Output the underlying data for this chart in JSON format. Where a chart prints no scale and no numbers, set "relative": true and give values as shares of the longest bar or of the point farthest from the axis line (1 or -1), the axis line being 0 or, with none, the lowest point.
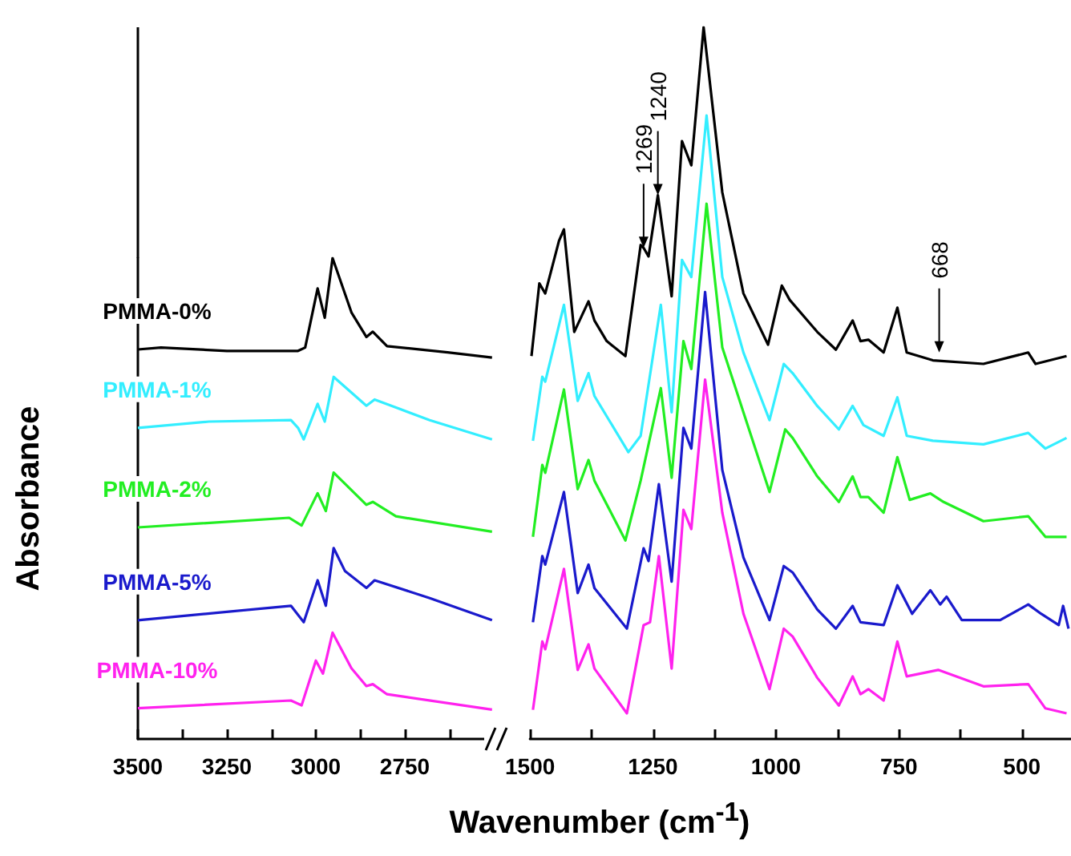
{
  "chart_data": [
    {
      "type": "line",
      "relative": true,
      "ylabel": "Absorbance",
      "xlim": [
        3500,
        2500
      ],
      "xticks": [
        3500,
        {
          "value": 3375,
          "label": null
        },
        3250,
        {
          "value": 3125,
          "label": null
        },
        3000,
        {
          "value": 2875,
          "label": null
        },
        2750,
        {
          "value": 2625,
          "label": null
        },
        {
          "value": 2500,
          "label": null
        }
      ],
      "series": [
        {
          "name": "PMMA-0%",
          "color": "#000000",
          "x": [
            3500,
            3435,
            3250,
            3050,
            3030,
            2995,
            2975,
            2953,
            2900,
            2858,
            2840,
            2800,
            2630,
            2505
          ],
          "values": [
            0.81,
            0.814,
            0.807,
            0.807,
            0.814,
            0.937,
            0.876,
            1.0,
            0.887,
            0.836,
            0.847,
            0.817,
            0.804,
            0.793
          ]
        },
        {
          "name": "PMMA-1%",
          "color": "#33eeff",
          "x": [
            3500,
            3300,
            3070,
            3050,
            3034,
            2995,
            2975,
            2950,
            2858,
            2835,
            2680,
            2505
          ],
          "values": [
            0.647,
            0.66,
            0.663,
            0.647,
            0.623,
            0.697,
            0.66,
            0.753,
            0.693,
            0.706,
            0.663,
            0.623
          ]
        },
        {
          "name": "PMMA-2%",
          "color": "#22ee22",
          "x": [
            3500,
            3075,
            3040,
            2995,
            2972,
            2950,
            2858,
            2840,
            2775,
            2505
          ],
          "values": [
            0.44,
            0.46,
            0.444,
            0.511,
            0.474,
            0.554,
            0.487,
            0.493,
            0.463,
            0.431
          ]
        },
        {
          "name": "PMMA-5%",
          "color": "#1a1acc",
          "x": [
            3500,
            3070,
            3034,
            2995,
            2972,
            2950,
            2918,
            2858,
            2835,
            2680,
            2505
          ],
          "values": [
            0.247,
            0.277,
            0.243,
            0.33,
            0.277,
            0.397,
            0.349,
            0.314,
            0.33,
            0.293,
            0.247
          ]
        },
        {
          "name": "PMMA-10%",
          "color": "#ff22ee",
          "x": [
            3500,
            3070,
            3040,
            3000,
            2980,
            2953,
            2900,
            2858,
            2840,
            2800,
            2505
          ],
          "values": [
            0.064,
            0.08,
            0.07,
            0.163,
            0.136,
            0.221,
            0.147,
            0.11,
            0.114,
            0.093,
            0.061
          ]
        }
      ]
    },
    {
      "type": "line",
      "relative": true,
      "xlabel": "Wavenumber (cm$^{-1}$)",
      "xlim": [
        1500,
        400
      ],
      "xticks": [
        1500,
        {
          "value": 1375,
          "label": null
        },
        1250,
        {
          "value": 1125,
          "label": null
        },
        1000,
        {
          "value": 875,
          "label": null
        },
        750,
        {
          "value": 625,
          "label": null
        },
        500
      ],
      "annotations": [
        {
          "text": "1269",
          "x": 1269,
          "y": 0.69
        },
        {
          "text": "1240",
          "x": 1240,
          "y": 0.764
        },
        {
          "text": "668",
          "x": 668,
          "y": 0.543
        }
      ],
      "series": [
        {
          "color": "#000000",
          "x": [
            1497,
            1481,
            1469,
            1441,
            1431,
            1410,
            1381,
            1369,
            1344,
            1306,
            1275,
            1269,
            1259,
            1240,
            1212,
            1191,
            1172,
            1147,
            1109,
            1066,
            1016,
            988,
            972,
            916,
            878,
            844,
            828,
            812,
            781,
            753,
            734,
            681,
            578,
            487,
            472,
            409
          ],
          "values": [
            0.538,
            0.64,
            0.626,
            0.7,
            0.716,
            0.572,
            0.615,
            0.588,
            0.559,
            0.538,
            0.694,
            0.69,
            0.678,
            0.764,
            0.622,
            0.84,
            0.806,
            1.0,
            0.768,
            0.626,
            0.554,
            0.637,
            0.617,
            0.572,
            0.547,
            0.588,
            0.559,
            0.561,
            0.543,
            0.606,
            0.543,
            0.532,
            0.527,
            0.543,
            0.527,
            0.538
          ]
        },
        {
          "color": "#33eeff",
          "x": [
            1494,
            1475,
            1469,
            1431,
            1403,
            1381,
            1369,
            1300,
            1275,
            1234,
            1212,
            1191,
            1172,
            1141,
            1109,
            1066,
            1013,
            984,
            966,
            916,
            872,
            844,
            822,
            781,
            753,
            734,
            681,
            578,
            487,
            452,
            409
          ],
          "values": [
            0.419,
            0.509,
            0.502,
            0.61,
            0.475,
            0.514,
            0.482,
            0.403,
            0.426,
            0.61,
            0.459,
            0.673,
            0.649,
            0.876,
            0.649,
            0.543,
            0.448,
            0.527,
            0.514,
            0.468,
            0.435,
            0.468,
            0.441,
            0.426,
            0.48,
            0.426,
            0.419,
            0.414,
            0.43,
            0.408,
            0.423
          ]
        },
        {
          "color": "#22ee22",
          "x": [
            1494,
            1475,
            1469,
            1431,
            1403,
            1381,
            1369,
            1306,
            1275,
            1234,
            1212,
            1188,
            1172,
            1141,
            1109,
            1066,
            1013,
            981,
            966,
            916,
            872,
            844,
            828,
            812,
            781,
            753,
            728,
            686,
            659,
            578,
            487,
            452,
            409
          ],
          "values": [
            0.284,
            0.385,
            0.374,
            0.491,
            0.351,
            0.392,
            0.363,
            0.279,
            0.363,
            0.493,
            0.367,
            0.559,
            0.52,
            0.752,
            0.55,
            0.459,
            0.347,
            0.435,
            0.423,
            0.369,
            0.333,
            0.369,
            0.34,
            0.34,
            0.318,
            0.396,
            0.336,
            0.345,
            0.333,
            0.306,
            0.313,
            0.284,
            0.284
          ]
        },
        {
          "color": "#1a1acc",
          "x": [
            1494,
            1475,
            1469,
            1431,
            1403,
            1381,
            1369,
            1303,
            1269,
            1259,
            1238,
            1212,
            1188,
            1172,
            1144,
            1109,
            1066,
            1013,
            984,
            966,
            916,
            878,
            844,
            828,
            781,
            753,
            723,
            686,
            666,
            653,
            622,
            544,
            487,
            461,
            425,
            416,
            405
          ],
          "values": [
            0.164,
            0.257,
            0.245,
            0.347,
            0.205,
            0.245,
            0.212,
            0.155,
            0.268,
            0.25,
            0.358,
            0.221,
            0.437,
            0.408,
            0.628,
            0.378,
            0.255,
            0.167,
            0.243,
            0.234,
            0.182,
            0.155,
            0.187,
            0.164,
            0.16,
            0.216,
            0.176,
            0.209,
            0.189,
            0.2,
            0.167,
            0.167,
            0.189,
            0.176,
            0.16,
            0.187,
            0.155
          ]
        },
        {
          "color": "#ff22ee",
          "x": [
            1494,
            1475,
            1469,
            1431,
            1403,
            1381,
            1369,
            1303,
            1269,
            1256,
            1238,
            1212,
            1188,
            1172,
            1144,
            1109,
            1066,
            1013,
            984,
            966,
            916,
            872,
            844,
            828,
            812,
            781,
            753,
            734,
            670,
            578,
            487,
            452,
            409
          ],
          "values": [
            0.041,
            0.137,
            0.126,
            0.239,
            0.097,
            0.133,
            0.099,
            0.036,
            0.16,
            0.164,
            0.257,
            0.099,
            0.322,
            0.295,
            0.505,
            0.318,
            0.176,
            0.07,
            0.155,
            0.144,
            0.086,
            0.047,
            0.088,
            0.063,
            0.07,
            0.054,
            0.137,
            0.088,
            0.097,
            0.074,
            0.077,
            0.043,
            0.036
          ]
        }
      ]
    }
  ]
}
